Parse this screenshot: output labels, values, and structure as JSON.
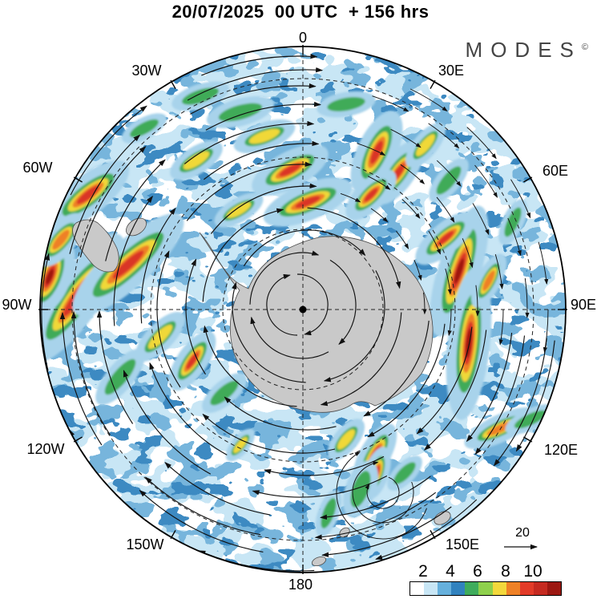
{
  "title": "20/07/2025  00 UTC  + 156 hrs",
  "brand": {
    "name": "MODES",
    "mark": "©"
  },
  "map": {
    "meridian_labels": [
      {
        "label": "0"
      },
      {
        "label": "30E"
      },
      {
        "label": "60E"
      },
      {
        "label": "90E"
      },
      {
        "label": "120E"
      },
      {
        "label": "150E"
      },
      {
        "label": "180"
      },
      {
        "label": "150W"
      },
      {
        "label": "120W"
      },
      {
        "label": "90W"
      },
      {
        "label": "60W"
      },
      {
        "label": "30W"
      }
    ]
  },
  "wind_reference": {
    "label": "20"
  },
  "colorbar": {
    "tick_labels": [
      "2",
      "4",
      "6",
      "8",
      "10"
    ],
    "colors": [
      "#ffffff",
      "#c8e6f5",
      "#66b0dc",
      "#3182be",
      "#3fac5c",
      "#8ed04c",
      "#f3d83c",
      "#ef8126",
      "#e23b28",
      "#c52a20",
      "#9c1812"
    ]
  }
}
